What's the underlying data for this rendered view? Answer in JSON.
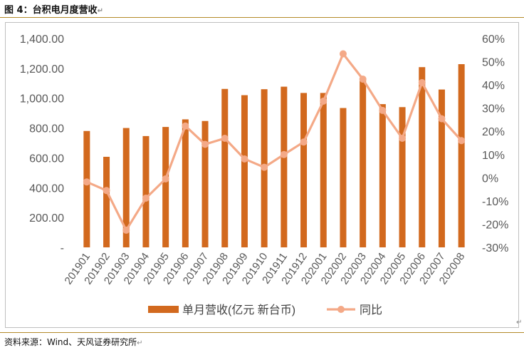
{
  "figure": {
    "title": "图 4：台积电月度营收",
    "return_mark": "↵",
    "source": "资料来源：Wind、天风证券研究所"
  },
  "chart_data": {
    "type": "bar",
    "categories": [
      "201901",
      "201902",
      "201903",
      "201904",
      "201905",
      "201906",
      "201907",
      "201908",
      "201909",
      "201910",
      "201911",
      "201912",
      "202001",
      "202002",
      "202003",
      "202004",
      "202005",
      "202006",
      "202007",
      "202008"
    ],
    "series": [
      {
        "name": "单月营收(亿元 新台币)",
        "type": "bar",
        "axis": "left",
        "color": "#D2691E",
        "values": [
          780,
          607,
          800,
          746,
          807,
          858,
          847,
          1062,
          1020,
          1060,
          1077,
          1035,
          1035,
          934,
          1130,
          960,
          940,
          1208,
          1058,
          1228
        ]
      },
      {
        "name": "同比",
        "type": "line",
        "axis": "right",
        "color": "#F4A987",
        "values": [
          -1.8,
          -5.5,
          -22.6,
          -8.8,
          -0.5,
          22.3,
          14.4,
          17,
          8.1,
          4.5,
          10,
          15.4,
          33,
          53.4,
          42.5,
          29,
          17,
          41,
          25.4,
          16
        ]
      }
    ],
    "y_left": {
      "min": 0,
      "max": 1400,
      "ticks": [
        0,
        200,
        400,
        600,
        800,
        1000,
        1200,
        1400
      ],
      "tick_labels": [
        "-",
        "200.00",
        "400.00",
        "600.00",
        "800.00",
        "1,000.00",
        "1,200.00",
        "1,400.00"
      ]
    },
    "y_right": {
      "min": -30,
      "max": 60,
      "ticks": [
        -30,
        -20,
        -10,
        0,
        10,
        20,
        30,
        40,
        50,
        60
      ],
      "tick_labels": [
        "-30%",
        "-20%",
        "-10%",
        "0%",
        "10%",
        "20%",
        "30%",
        "40%",
        "50%",
        "60%"
      ]
    },
    "legend_position": "bottom",
    "grid": false
  }
}
